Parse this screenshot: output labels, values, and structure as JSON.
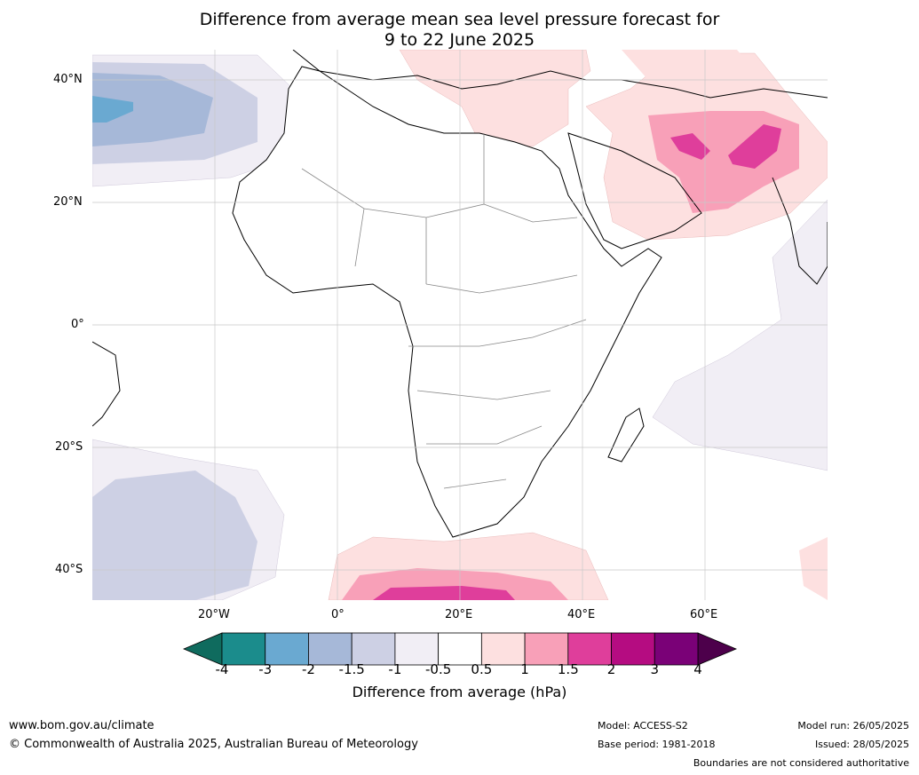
{
  "title": {
    "line1": "Difference from average mean sea level pressure forecast for",
    "line2": "9 to 22 June 2025"
  },
  "map": {
    "region": "Africa",
    "lat_labels": [
      "40°N",
      "20°N",
      "0°",
      "20°S",
      "40°S"
    ],
    "lon_labels": [
      "20°W",
      "0°",
      "20°E",
      "40°E",
      "60°E"
    ],
    "anomalies": [
      {
        "area": "North Atlantic (off Iberia)",
        "range": "-3 to -1.5"
      },
      {
        "area": "Iran / Afghanistan / Pakistan",
        "range": "1.5 to 2"
      },
      {
        "area": "Arabian Peninsula",
        "range": "0.5 to 1.5"
      },
      {
        "area": "Southern Ocean south of Africa",
        "range": "0.5 to 2"
      },
      {
        "area": "South Atlantic",
        "range": "-1.5 to -0.5"
      }
    ]
  },
  "colorbar": {
    "label": "Difference from average (hPa)",
    "ticks": [
      "-4",
      "-3",
      "-2",
      "-1.5",
      "-1",
      "-0.5",
      "0.5",
      "1",
      "1.5",
      "2",
      "3",
      "4"
    ],
    "colors": [
      "#1b8c8c",
      "#6aa9d1",
      "#a6b8d8",
      "#cdd0e4",
      "#f1eef5",
      "#ffffff",
      "#fde0e0",
      "#f8a0b8",
      "#df3e9b",
      "#b50c81",
      "#7a0177"
    ],
    "under_color": "#0f6b5e",
    "over_color": "#4d004b"
  },
  "footer": {
    "website": "www.bom.gov.au/climate",
    "copyright": "© Commonwealth of Australia 2025, Australian Bureau of Meteorology",
    "model": "Model: ACCESS-S2",
    "base_period": "Base period: 1981-2018",
    "model_run": "Model run: 26/05/2025",
    "issued": "Issued: 28/05/2025",
    "disclaimer": "Boundaries are not considered authoritative"
  }
}
